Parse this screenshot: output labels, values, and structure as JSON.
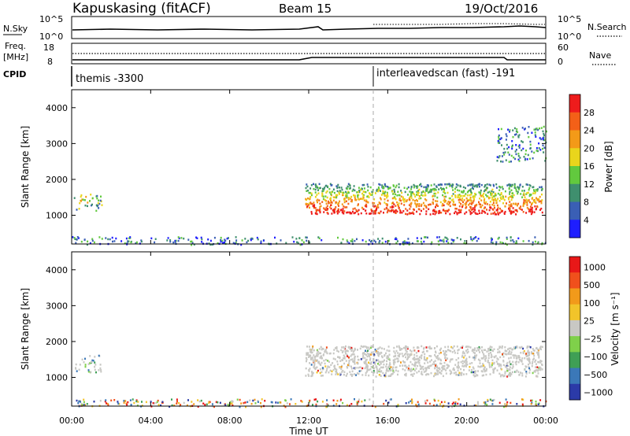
{
  "header": {
    "station": "Kapuskasing (fitACF)",
    "beam": "Beam 15",
    "date": "19/Oct/2016"
  },
  "panels": {
    "nsky": {
      "label": "N.Sky",
      "ticks_left": [
        "10^5",
        "10^0"
      ],
      "ticks_right": [
        "10^5",
        "10^0"
      ],
      "right_label": "N.Search"
    },
    "freq": {
      "label_lines": [
        "Freq.",
        "[MHz]"
      ],
      "ticks_left": [
        "18",
        "8"
      ],
      "ticks_right": [
        "60",
        "0"
      ],
      "right_label": "Nave"
    },
    "cpid": {
      "label": "CPID",
      "modes": [
        {
          "text": "themis -3300",
          "start_hour": 0
        },
        {
          "text": "interleavedscan (fast) -191",
          "start_hour": 15.2
        }
      ]
    }
  },
  "chart_data": [
    {
      "type": "heatmap",
      "name": "power",
      "ylabel": "Slant Range [km]",
      "yticks": [
        "1000",
        "2000",
        "3000",
        "4000"
      ],
      "ylim": [
        200,
        4500
      ],
      "xlim": [
        0,
        24
      ],
      "grid": false,
      "colorbar": {
        "label": "Power [dB]",
        "ticks": [
          "4",
          "8",
          "12",
          "16",
          "20",
          "24",
          "28"
        ],
        "colors": [
          "#1e1eff",
          "#3a5fb5",
          "#3f8f6e",
          "#62c93e",
          "#e9d51c",
          "#f39a18",
          "#f36018",
          "#ee1c1c"
        ]
      },
      "echo_regions": [
        {
          "hours": [
            0.1,
            1.5
          ],
          "range_km": [
            1150,
            1650
          ],
          "level": "moderate"
        },
        {
          "hours": [
            0,
            24
          ],
          "range_km": [
            200,
            420
          ],
          "level": "weak"
        },
        {
          "hours": [
            11.8,
            23.8
          ],
          "range_km": [
            1050,
            1900
          ],
          "level": "strong"
        },
        {
          "hours": [
            21.5,
            24
          ],
          "range_km": [
            2500,
            3500
          ],
          "level": "weak"
        }
      ]
    },
    {
      "type": "heatmap",
      "name": "velocity",
      "ylabel": "Slant Range [km]",
      "yticks": [
        "1000",
        "2000",
        "3000",
        "4000"
      ],
      "ylim": [
        200,
        4500
      ],
      "xlim": [
        0,
        24
      ],
      "grid": false,
      "colorbar": {
        "label": "Velocity [m s⁻¹]",
        "ticks": [
          "1000",
          "500",
          "100",
          "25",
          "−25",
          "−100",
          "−500",
          "−1000"
        ],
        "colors": [
          "#2b3aa8",
          "#3b78b8",
          "#3f9f55",
          "#7fd04a",
          "#c8c8c4",
          "#f2c42a",
          "#f29a1a",
          "#f0501c",
          "#e81818"
        ]
      },
      "echo_regions": [
        {
          "hours": [
            0.1,
            1.5
          ],
          "range_km": [
            1150,
            1650
          ],
          "level": "ground-scatter-mixed"
        },
        {
          "hours": [
            11.8,
            23.8
          ],
          "range_km": [
            1050,
            1900
          ],
          "level": "ground-scatter"
        },
        {
          "hours": [
            0,
            24
          ],
          "range_km": [
            200,
            420
          ],
          "level": "mixed"
        }
      ]
    }
  ],
  "xaxis": {
    "label": "Time UT",
    "ticks": [
      "00:00",
      "04:00",
      "08:00",
      "12:00",
      "16:00",
      "20:00",
      "00:00"
    ]
  }
}
